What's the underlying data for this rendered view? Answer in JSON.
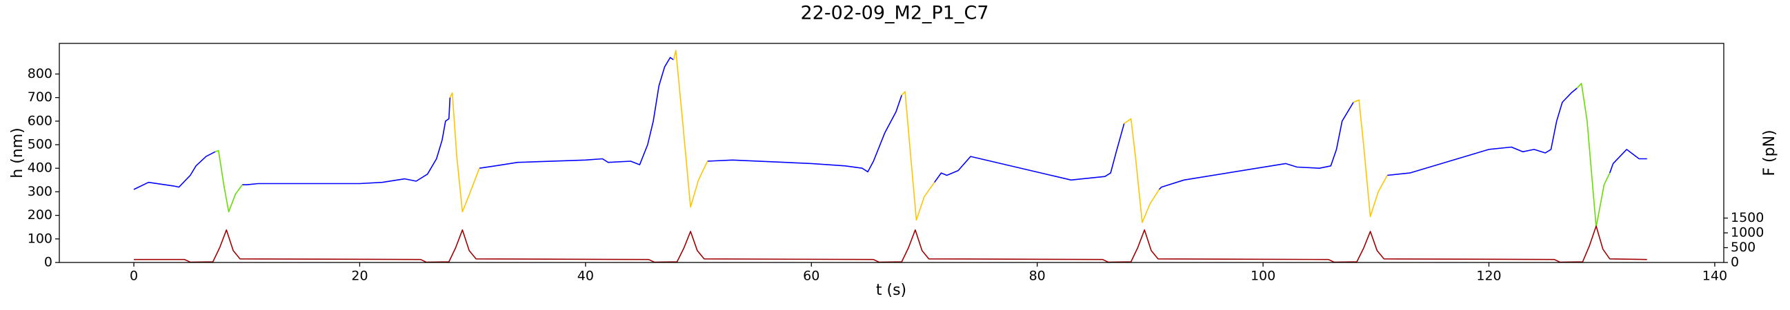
{
  "chart_data": {
    "type": "line",
    "title": "22-02-09_M2_P1_C7",
    "xlabel": "t (s)",
    "ylabel": "h (nm)",
    "y2label": "F (pN)",
    "xlim": [
      -6.6,
      140.8
    ],
    "xticks": [
      0,
      20,
      40,
      60,
      80,
      100,
      120,
      140
    ],
    "ylim": [
      0,
      930
    ],
    "yticks": [
      0,
      100,
      200,
      300,
      400,
      500,
      600,
      700,
      800
    ],
    "y2lim": [
      0,
      7400
    ],
    "y2ticks": [
      0,
      500,
      1000,
      1500
    ],
    "grid": false,
    "series": [
      {
        "color": "#0000ff",
        "x": [
          0,
          1.3,
          3.5,
          4,
          5,
          5.5,
          6.4,
          7.2,
          8,
          9.6,
          10,
          11,
          20,
          22,
          24,
          25,
          26,
          26.8,
          27.3,
          27.6,
          27.9,
          28,
          29,
          30.6,
          32,
          34,
          40,
          41.5,
          42,
          44,
          44.8,
          45.5,
          46,
          46.5,
          47,
          47.5,
          47.8,
          49,
          50.8,
          53,
          60,
          63,
          64.5,
          65,
          65.5,
          66.5,
          67.5,
          68,
          69,
          70.9,
          71.5,
          72,
          73,
          74.1,
          83,
          84,
          86,
          86.5,
          87,
          87.7,
          89,
          90.8,
          91,
          93,
          102,
          103,
          105,
          106,
          106.5,
          107,
          108,
          109,
          111,
          113,
          120,
          122,
          123,
          124,
          125,
          125.5,
          126,
          126.5,
          127.3,
          127.8,
          129,
          130.7,
          131,
          132.2,
          133.3,
          134
        ],
        "values": [
          310,
          340,
          325,
          320,
          370,
          410,
          450,
          470,
          null,
          330,
          330,
          335,
          335,
          340,
          355,
          345,
          375,
          440,
          520,
          600,
          610,
          700,
          null,
          400,
          410,
          425,
          435,
          440,
          425,
          430,
          415,
          500,
          600,
          750,
          830,
          870,
          860,
          null,
          430,
          435,
          420,
          410,
          400,
          385,
          430,
          550,
          640,
          710,
          null,
          340,
          380,
          370,
          390,
          450,
          350,
          355,
          365,
          380,
          470,
          590,
          null,
          310,
          320,
          350,
          420,
          405,
          400,
          410,
          480,
          600,
          680,
          null,
          370,
          380,
          480,
          490,
          470,
          480,
          465,
          480,
          600,
          680,
          720,
          740,
          null,
          380,
          420,
          480,
          440,
          440
        ]
      },
      {
        "color": "#66dd00",
        "x": [
          7.2,
          7.5,
          8,
          8.4,
          9,
          9.6,
          70,
          127.8,
          128.2,
          128.7,
          129.5,
          130.2,
          130.7
        ],
        "values": [
          470,
          475,
          320,
          215,
          290,
          330,
          null,
          740,
          760,
          600,
          150,
          330,
          380
        ]
      },
      {
        "color": "#ffc400",
        "x": [
          28,
          28.2,
          28.6,
          29.1,
          29.8,
          30.6,
          40,
          47.8,
          48,
          48.6,
          49.3,
          50,
          50.8,
          60,
          68,
          68.3,
          68.8,
          69.3,
          70,
          70.9,
          80,
          87.7,
          88.3,
          88.7,
          89.3,
          90,
          90.8,
          100,
          108,
          108.5,
          108.9,
          109.5,
          110.2,
          111
        ],
        "values": [
          700,
          720,
          450,
          215,
          300,
          400,
          null,
          860,
          900,
          600,
          235,
          350,
          430,
          null,
          710,
          725,
          450,
          180,
          280,
          340,
          null,
          590,
          610,
          450,
          170,
          250,
          310,
          null,
          680,
          690,
          500,
          195,
          300,
          370
        ]
      },
      {
        "color": "#a00000",
        "axis": "y2",
        "x": [
          0,
          4.5,
          5,
          7,
          7.6,
          8.2,
          8.8,
          9.4,
          25.4,
          25.9,
          27.9,
          28.5,
          29.1,
          29.7,
          30.3,
          45.6,
          46.1,
          48.1,
          48.7,
          49.3,
          49.9,
          50.5,
          65.5,
          66,
          68,
          68.6,
          69.2,
          69.8,
          70.4,
          85.8,
          86.3,
          88.3,
          88.9,
          89.5,
          90.1,
          90.7,
          105.8,
          106.3,
          108.3,
          108.9,
          109.5,
          110.1,
          110.7,
          125.8,
          126.3,
          128.3,
          128.9,
          129.5,
          130.1,
          130.7,
          134
        ],
        "values": [
          100,
          100,
          10,
          20,
          500,
          1100,
          400,
          120,
          100,
          10,
          20,
          500,
          1100,
          400,
          120,
          100,
          10,
          20,
          480,
          1050,
          400,
          120,
          100,
          10,
          20,
          500,
          1100,
          400,
          120,
          100,
          10,
          20,
          500,
          1100,
          400,
          120,
          100,
          10,
          20,
          480,
          1050,
          400,
          120,
          100,
          10,
          20,
          560,
          1230,
          450,
          120,
          100
        ]
      }
    ]
  }
}
